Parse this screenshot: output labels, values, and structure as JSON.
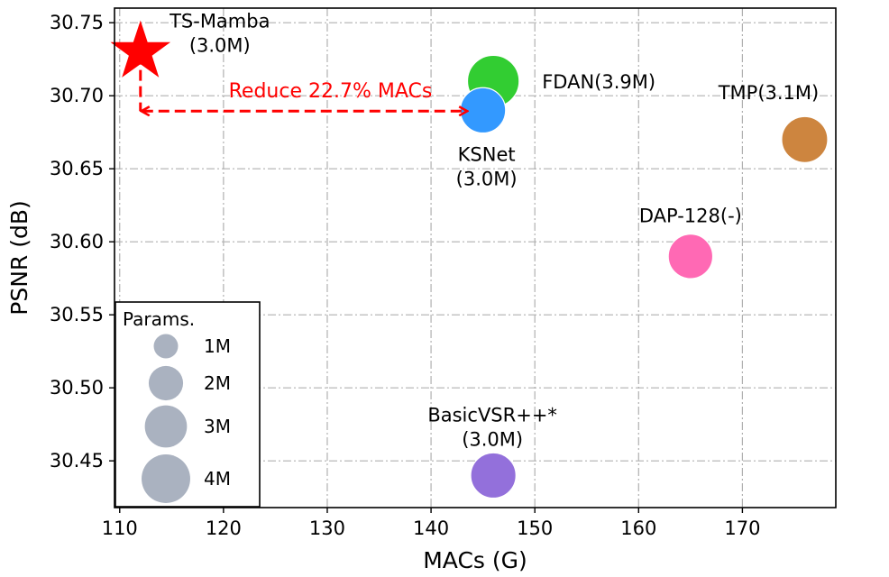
{
  "chart_data": {
    "type": "scatter",
    "title": "",
    "xlabel": "MACs (G)",
    "ylabel": "PSNR (dB)",
    "xlim": [
      109.5,
      179
    ],
    "ylim": [
      30.418,
      30.76
    ],
    "xticks": [
      110,
      120,
      130,
      140,
      150,
      160,
      170
    ],
    "yticks": [
      30.45,
      30.5,
      30.55,
      30.6,
      30.65,
      30.7,
      30.75
    ],
    "ytick_labels": [
      "30.45",
      "30.50",
      "30.55",
      "30.60",
      "30.65",
      "30.70",
      "30.75"
    ],
    "grid": true,
    "points": [
      {
        "name": "TS-Mamba",
        "label_lines": [
          "TS-Mamba",
          "(3.0M)"
        ],
        "x": 112,
        "y": 30.73,
        "params_m": 3.0,
        "color": "#ff0000",
        "marker": "star"
      },
      {
        "name": "FDAN",
        "label_lines": [
          "FDAN(3.9M)"
        ],
        "x": 146,
        "y": 30.71,
        "params_m": 3.9,
        "color": "#32cd32",
        "marker": "circle"
      },
      {
        "name": "KSNet",
        "label_lines": [
          "KSNet",
          "(3.0M)"
        ],
        "x": 145,
        "y": 30.69,
        "params_m": 3.0,
        "color": "#3399ff",
        "marker": "circle"
      },
      {
        "name": "TMP",
        "label_lines": [
          "TMP(3.1M)"
        ],
        "x": 176,
        "y": 30.67,
        "params_m": 3.1,
        "color": "#cd853f",
        "marker": "circle"
      },
      {
        "name": "DAP-128",
        "label_lines": [
          "DAP-128(-)"
        ],
        "x": 165,
        "y": 30.59,
        "params_m": 2.9,
        "color": "#ff69b4",
        "marker": "circle"
      },
      {
        "name": "BasicVSR++*",
        "label_lines": [
          "BasicVSR++*",
          "(3.0M)"
        ],
        "x": 146,
        "y": 30.44,
        "params_m": 3.0,
        "color": "#9370db",
        "marker": "circle"
      }
    ],
    "annotation": {
      "text": "Reduce 22.7% MACs",
      "color": "#ff0000",
      "arrow_from": [
        112,
        30.6895
      ],
      "arrow_to": [
        143.4,
        30.6895
      ],
      "dashed_drop": {
        "x": 112,
        "y_from": 30.73,
        "y_to": 30.6895
      }
    },
    "legend": {
      "title": "Params.",
      "placement": "bottom-left",
      "entries": [
        {
          "label": "1M",
          "params_m": 1
        },
        {
          "label": "2M",
          "params_m": 2
        },
        {
          "label": "3M",
          "params_m": 3
        },
        {
          "label": "4M",
          "params_m": 4
        }
      ],
      "color": "#aab2c0"
    }
  }
}
